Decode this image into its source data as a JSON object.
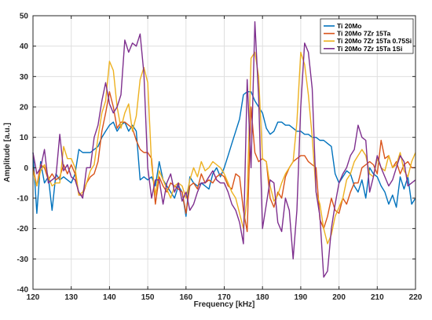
{
  "chart_data": {
    "type": "line",
    "xlabel": "Frequency [kHz]",
    "ylabel": "Amplitude [a.u.]",
    "xlim": [
      120,
      220
    ],
    "ylim": [
      -40,
      50
    ],
    "xticks": [
      120,
      130,
      140,
      150,
      160,
      170,
      180,
      190,
      200,
      210,
      220
    ],
    "yticks": [
      -40,
      -30,
      -20,
      -10,
      0,
      10,
      20,
      30,
      40,
      50
    ],
    "grid": true,
    "legend_position": "top-right",
    "series": [
      {
        "name": "Ti 20Mo",
        "color": "#0072bd",
        "x": [
          120,
          121,
          122,
          123,
          124,
          125,
          126,
          127,
          128,
          129,
          130,
          131,
          132,
          133,
          134,
          135,
          136,
          137,
          138,
          139,
          140,
          141,
          142,
          143,
          144,
          145,
          146,
          147,
          148,
          149,
          150,
          151,
          152,
          153,
          154,
          155,
          156,
          157,
          158,
          159,
          160,
          161,
          162,
          163,
          164,
          165,
          166,
          167,
          168,
          169,
          170,
          171,
          172,
          173,
          174,
          175,
          176,
          177,
          178,
          179,
          180,
          181,
          182,
          183,
          184,
          185,
          186,
          187,
          188,
          189,
          190,
          191,
          192,
          193,
          194,
          195,
          196,
          197,
          198,
          199,
          200,
          201,
          202,
          203,
          204,
          205,
          206,
          207,
          208,
          209,
          210,
          211,
          212,
          213,
          214,
          215,
          216,
          217,
          218,
          219,
          220
        ],
        "y": [
          5,
          -15,
          2,
          -5,
          -3,
          -14,
          -2,
          -4,
          -3,
          -4,
          -5,
          -2,
          6,
          5,
          5,
          5,
          6,
          7,
          10,
          12,
          14,
          15,
          12,
          14,
          15,
          12,
          14,
          12,
          -4,
          -3,
          -4,
          -3,
          -6,
          2,
          -4,
          -6,
          -8,
          -10,
          -6,
          -8,
          -16,
          -3,
          -5,
          -6,
          -5,
          -6,
          -7,
          -2,
          0,
          -3,
          0,
          4,
          8,
          12,
          16,
          24,
          25,
          25,
          22,
          20,
          18,
          13,
          11,
          12,
          15,
          15,
          14,
          14,
          13,
          12,
          12,
          11,
          11,
          10,
          10,
          9,
          9,
          8,
          7,
          -2,
          -5,
          -3,
          -1,
          -2,
          -6,
          -8,
          -4,
          -10,
          0,
          -2,
          -3,
          -6,
          -8,
          -12,
          -9,
          -13,
          -3,
          -7,
          -3,
          -12,
          -10
        ]
      },
      {
        "name": "Ti 20Mo 7Zr 15Ta",
        "color": "#d95319",
        "x": [
          120,
          121,
          122,
          123,
          124,
          125,
          126,
          127,
          128,
          129,
          130,
          131,
          132,
          133,
          134,
          135,
          136,
          137,
          138,
          139,
          140,
          141,
          142,
          143,
          144,
          145,
          146,
          147,
          148,
          149,
          150,
          151,
          152,
          153,
          154,
          155,
          156,
          157,
          158,
          159,
          160,
          161,
          162,
          163,
          164,
          165,
          166,
          167,
          168,
          169,
          170,
          171,
          172,
          173,
          174,
          175,
          176,
          177,
          178,
          179,
          180,
          181,
          182,
          183,
          184,
          185,
          186,
          187,
          188,
          189,
          190,
          191,
          192,
          193,
          194,
          195,
          196,
          197,
          198,
          199,
          200,
          201,
          202,
          203,
          204,
          205,
          206,
          207,
          208,
          209,
          210,
          211,
          212,
          213,
          214,
          215,
          216,
          217,
          218,
          219,
          220
        ],
        "y": [
          0,
          -6,
          1,
          0,
          -4,
          -2,
          -4,
          -3,
          1,
          -2,
          1,
          -2,
          -9,
          -9,
          -5,
          -3,
          -2,
          2,
          12,
          18,
          25,
          20,
          13,
          15,
          15,
          14,
          13,
          9,
          6,
          5,
          5,
          3,
          -12,
          -3,
          -6,
          -8,
          -5,
          -6,
          -7,
          -8,
          -15,
          -6,
          -5,
          -7,
          -2,
          -5,
          -4,
          -5,
          -3,
          -2,
          -3,
          -6,
          -7,
          -2,
          -3,
          -14,
          -21,
          20,
          5,
          2,
          3,
          2,
          -10,
          -13,
          -8,
          -10,
          -3,
          0,
          2,
          3,
          4,
          4,
          2,
          1,
          0,
          -17,
          -20,
          -16,
          -10,
          -14,
          -15,
          -10,
          -12,
          -8,
          -5,
          -5,
          0,
          1,
          2,
          1,
          -2,
          9,
          3,
          4,
          0,
          2,
          -2,
          1,
          2,
          0,
          0
        ]
      },
      {
        "name": "Ti 20Mo 7Zr 15Ta 0.75Si",
        "color": "#edb120",
        "x": [
          120,
          121,
          122,
          123,
          124,
          125,
          126,
          127,
          128,
          129,
          130,
          131,
          132,
          133,
          134,
          135,
          136,
          137,
          138,
          139,
          140,
          141,
          142,
          143,
          144,
          145,
          146,
          147,
          148,
          149,
          150,
          151,
          152,
          153,
          154,
          155,
          156,
          157,
          158,
          159,
          160,
          161,
          162,
          163,
          164,
          165,
          166,
          167,
          168,
          169,
          170,
          171,
          172,
          173,
          174,
          175,
          176,
          177,
          178,
          179,
          180,
          181,
          182,
          183,
          184,
          185,
          186,
          187,
          188,
          189,
          190,
          191,
          192,
          193,
          194,
          195,
          196,
          197,
          198,
          199,
          200,
          201,
          202,
          203,
          204,
          205,
          206,
          207,
          208,
          209,
          210,
          211,
          212,
          213,
          214,
          215,
          216,
          217,
          218,
          219,
          220
        ],
        "y": [
          -1,
          -6,
          -1,
          1,
          -3,
          -6,
          -5,
          -5,
          7,
          3,
          3,
          0,
          -9,
          -8,
          -5,
          -1,
          1,
          10,
          18,
          22,
          35,
          32,
          20,
          13,
          18,
          21,
          12,
          17,
          29,
          33,
          28,
          1,
          -9,
          -1,
          -4,
          -7,
          -10,
          -6,
          -5,
          -6,
          -10,
          -4,
          0,
          -3,
          2,
          -1,
          0,
          2,
          1,
          0,
          -2,
          -5,
          -8,
          -10,
          -15,
          -20,
          -10,
          36,
          38,
          30,
          3,
          2,
          -6,
          -11,
          -9,
          -5,
          -2,
          0,
          2,
          15,
          38,
          34,
          24,
          10,
          -8,
          -12,
          -20,
          -25,
          -22,
          -16,
          -13,
          -10,
          -4,
          -2,
          2,
          4,
          6,
          4,
          -2,
          -3,
          3,
          0,
          -1,
          4,
          0,
          1,
          5,
          -1,
          -3,
          2,
          5
        ]
      },
      {
        "name": "Ti 20Mo 7Zr 15Ta 1Si",
        "color": "#7e2f8e",
        "x": [
          120,
          121,
          122,
          123,
          124,
          125,
          126,
          127,
          128,
          129,
          130,
          131,
          132,
          133,
          134,
          135,
          136,
          137,
          138,
          139,
          140,
          141,
          142,
          143,
          144,
          145,
          146,
          147,
          148,
          149,
          150,
          151,
          152,
          153,
          154,
          155,
          156,
          157,
          158,
          159,
          160,
          161,
          162,
          163,
          164,
          165,
          166,
          167,
          168,
          169,
          170,
          171,
          172,
          173,
          174,
          175,
          176,
          177,
          178,
          179,
          180,
          181,
          182,
          183,
          184,
          185,
          186,
          187,
          188,
          189,
          190,
          191,
          192,
          193,
          194,
          195,
          196,
          197,
          198,
          199,
          200,
          201,
          202,
          203,
          204,
          205,
          206,
          207,
          208,
          209,
          210,
          211,
          212,
          213,
          214,
          215,
          216,
          217,
          218,
          219,
          220
        ],
        "y": [
          5,
          -2,
          0,
          6,
          -5,
          -4,
          -3,
          11,
          -1,
          1,
          -3,
          -4,
          -8,
          -10,
          0,
          0,
          10,
          14,
          22,
          28,
          21,
          18,
          20,
          24,
          42,
          38,
          41,
          40,
          44,
          31,
          0,
          -10,
          -4,
          -4,
          -12,
          -5,
          -2,
          -8,
          -5,
          -11,
          -8,
          -14,
          -12,
          -8,
          -5,
          -5,
          -3,
          -1,
          -4,
          -5,
          -5,
          -8,
          -12,
          -14,
          -18,
          -25,
          29,
          0,
          48,
          23,
          -20,
          -12,
          -4,
          -5,
          -18,
          -21,
          -10,
          -14,
          -30,
          -14,
          20,
          41,
          38,
          26,
          -8,
          -16,
          -36,
          -34,
          -20,
          -12,
          -5,
          -2,
          0,
          4,
          6,
          14,
          10,
          9,
          -8,
          -3,
          4,
          0,
          -3,
          -6,
          -4,
          0,
          4,
          2,
          -6,
          -5,
          -4
        ]
      }
    ]
  }
}
